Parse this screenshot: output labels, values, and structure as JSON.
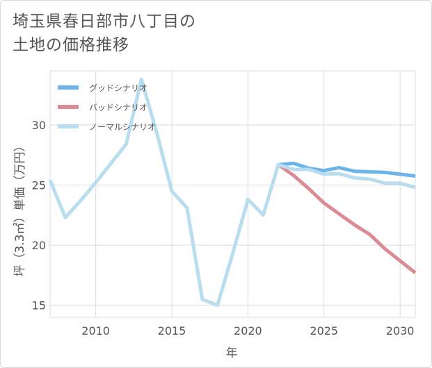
{
  "title": {
    "line1": "埼玉県春日部市八丁目の",
    "line2": "土地の価格推移"
  },
  "chart_data": {
    "type": "line",
    "xlabel": "年",
    "ylabel": "坪（3.3㎡）単価（万円）",
    "xlim": [
      2007,
      2031
    ],
    "ylim": [
      14,
      34.5
    ],
    "xticks": [
      2010,
      2015,
      2020,
      2025,
      2030
    ],
    "yticks": [
      15,
      20,
      25,
      30
    ],
    "grid": true,
    "legend_position": "top-left",
    "series": [
      {
        "name": "グッドシナリオ",
        "color": "#6cb4ea",
        "x": [
          2022,
          2023,
          2024,
          2025,
          2026,
          2027,
          2028,
          2029,
          2030,
          2031
        ],
        "y": [
          26.7,
          26.8,
          26.4,
          26.2,
          26.45,
          26.15,
          26.1,
          26.05,
          25.9,
          25.75
        ]
      },
      {
        "name": "バッドシナリオ",
        "color": "#dc8a94",
        "x": [
          2022,
          2023,
          2024,
          2025,
          2026,
          2027,
          2028,
          2029,
          2030,
          2031
        ],
        "y": [
          26.7,
          25.8,
          24.7,
          23.5,
          22.6,
          21.7,
          20.9,
          19.7,
          18.7,
          17.7
        ]
      },
      {
        "name": "ノーマルシナリオ",
        "color": "#b8ddee",
        "x": [
          2007,
          2008,
          2009,
          2010,
          2011,
          2012,
          2013,
          2014,
          2015,
          2016,
          2017,
          2018,
          2019,
          2020,
          2021,
          2022,
          2023,
          2024,
          2025,
          2026,
          2027,
          2028,
          2029,
          2030,
          2031
        ],
        "y": [
          25.4,
          22.3,
          23.7,
          25.2,
          26.8,
          28.4,
          33.8,
          29.4,
          24.5,
          23.1,
          15.5,
          15.0,
          19.3,
          23.8,
          22.5,
          26.7,
          26.3,
          26.3,
          25.9,
          25.95,
          25.6,
          25.5,
          25.15,
          25.15,
          24.8
        ]
      }
    ]
  }
}
